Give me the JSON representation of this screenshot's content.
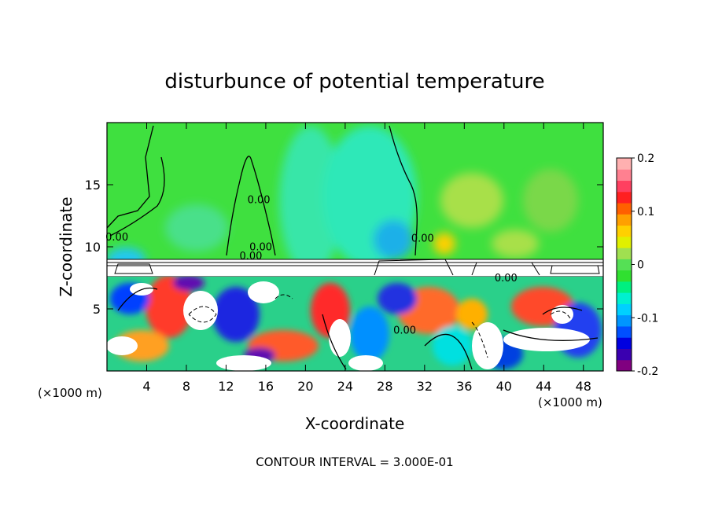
{
  "chart_data": {
    "type": "heatmap",
    "title": "disturbunce of potential temperature",
    "xlabel": "X-coordinate",
    "ylabel": "Z-coordinate",
    "x_unit_left": "(×1000 m)",
    "x_unit_right": "(×1000 m)",
    "xlim": [
      0,
      50
    ],
    "ylim": [
      0,
      20
    ],
    "x_ticks": [
      4,
      8,
      12,
      16,
      20,
      24,
      28,
      32,
      36,
      40,
      44,
      48
    ],
    "y_ticks": [
      5,
      10,
      15
    ],
    "contour_labels": [
      {
        "text": "0.00",
        "x": 1.0,
        "y": 10.5
      },
      {
        "text": "0.00",
        "x": 15.3,
        "y": 13.5
      },
      {
        "text": "0.00",
        "x": 14.5,
        "y": 9.0
      },
      {
        "text": "0.00",
        "x": 15.5,
        "y": 9.7
      },
      {
        "text": "0.00",
        "x": 31.8,
        "y": 10.4
      },
      {
        "text": "0.00",
        "x": 40.2,
        "y": 7.2
      },
      {
        "text": "0.00",
        "x": 30.0,
        "y": 3.0
      }
    ],
    "colorbar": {
      "min": -0.2,
      "max": 0.2,
      "ticks": [
        "0.2",
        "0.1",
        "0",
        "-0.1",
        "-0.2"
      ],
      "tick_values": [
        0.2,
        0.1,
        0,
        -0.1,
        -0.2
      ],
      "colors": [
        "#800080",
        "#3a00b0",
        "#0000e0",
        "#0050ff",
        "#0096ff",
        "#00d0ff",
        "#00f0d0",
        "#00f080",
        "#30e030",
        "#55e055",
        "#a0e050",
        "#e0f000",
        "#ffd000",
        "#ffa000",
        "#ff6000",
        "#ff2020",
        "#ff4060",
        "#ff8090",
        "#ffb0b0"
      ]
    },
    "footer": "CONTOUR INTERVAL = 3.000E-01",
    "grid": false
  }
}
